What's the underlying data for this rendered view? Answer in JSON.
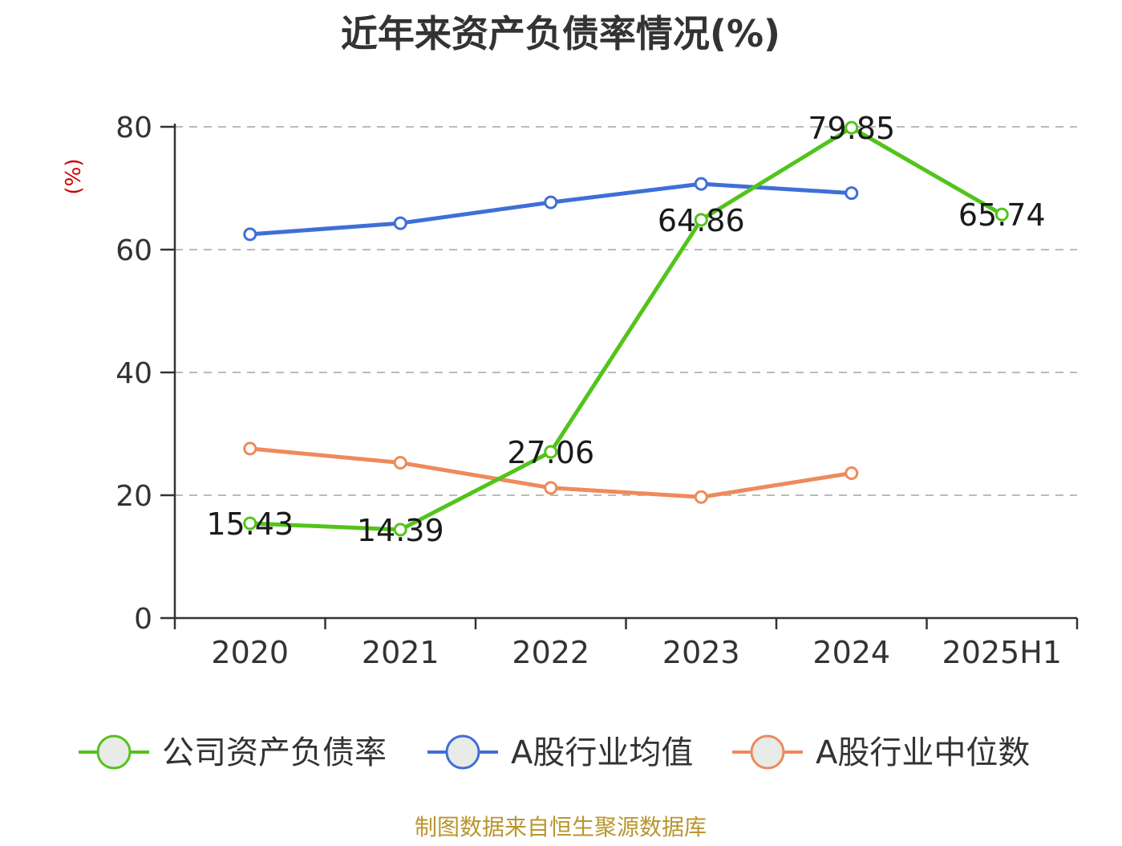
{
  "title": "近年来资产负债率情况(%)",
  "source": "制图数据来自恒生聚源数据库",
  "colors": {
    "company": "#52c41a",
    "industry_mean": "#3f6fd6",
    "industry_median": "#ee8a5c",
    "grid": "#bbbbbb",
    "axis": "#333333",
    "marker_fill": "#e8ebe8"
  },
  "chart_data": {
    "type": "line",
    "title": "近年来资产负债率情况(%)",
    "xlabel": "",
    "ylabel": "(%)",
    "ylim": [
      0,
      80
    ],
    "y_ticks": [
      0,
      20,
      40,
      60,
      80
    ],
    "grid": true,
    "legend_position": "bottom",
    "categories": [
      "2020",
      "2021",
      "2022",
      "2023",
      "2024",
      "2025H1"
    ],
    "series": [
      {
        "name": "公司资产负债率",
        "color": "#52c41a",
        "values": [
          15.43,
          14.39,
          27.06,
          64.86,
          79.85,
          65.74
        ],
        "labels": [
          "15.43",
          "14.39",
          "27.06",
          "64.86",
          "79.85",
          "65.74"
        ]
      },
      {
        "name": "A股行业均值",
        "color": "#3f6fd6",
        "values": [
          62.5,
          64.3,
          67.7,
          70.7,
          69.2,
          null
        ]
      },
      {
        "name": "A股行业中位数",
        "color": "#ee8a5c",
        "values": [
          27.6,
          25.3,
          21.2,
          19.7,
          23.6,
          null
        ]
      }
    ]
  }
}
